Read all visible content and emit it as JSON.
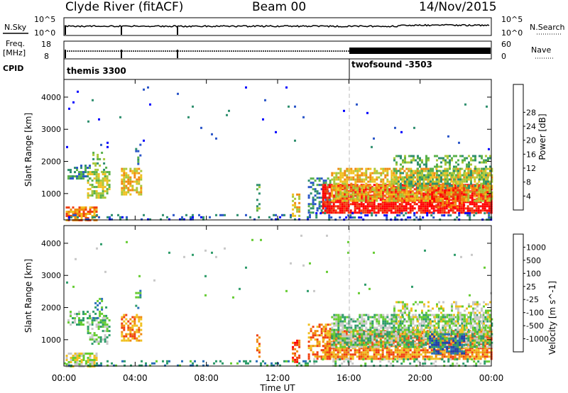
{
  "header": {
    "title": "Clyde River (fitACF)",
    "beam": "Beam 00",
    "date": "14/Nov/2015"
  },
  "params": {
    "nsky_label": "N.Sky",
    "nsearch_label": "N.Search",
    "freq_label_line1": "Freq.",
    "freq_label_line2": "[MHz]",
    "nave_label": "Nave",
    "cpid_label": "CPID",
    "noise_left_ticks": [
      "10^5",
      "10^0"
    ],
    "noise_right_ticks": [
      "10^5",
      "10^0"
    ],
    "freq_ticks": [
      "18",
      "8"
    ],
    "nave_ticks": [
      "60",
      "0"
    ],
    "cpid_segments": [
      {
        "start_hour": 0,
        "label": "themis 3300"
      },
      {
        "start_hour": 15.95,
        "label": "twofsound -3503"
      }
    ]
  },
  "axes": {
    "xlabel": "Time UT",
    "x_ticks": [
      "00:00",
      "04:00",
      "08:00",
      "12:00",
      "16:00",
      "20:00",
      "00:00"
    ],
    "x_tick_hours": [
      0,
      4,
      8,
      12,
      16,
      20,
      24
    ],
    "ylabel": "Slant Range [km]",
    "y_ticks": [
      "1000",
      "2000",
      "3000",
      "4000"
    ],
    "y_tick_values": [
      1000,
      2000,
      3000,
      4000
    ],
    "ylim": [
      180,
      4550
    ],
    "xlim": [
      0,
      24
    ]
  },
  "power_scale": {
    "label": "Power [dB]",
    "ticks": [
      "4",
      "8",
      "12",
      "16",
      "20",
      "24",
      "28"
    ],
    "colors": [
      "#0000ff",
      "#2a55c8",
      "#2e8f6e",
      "#59b14a",
      "#a8c83a",
      "#f0c020",
      "#f08a10",
      "#f04010",
      "#ff0000"
    ]
  },
  "velocity_scale": {
    "label": "Velocity [m s^-1]",
    "ticks": [
      "1000",
      "500",
      "100",
      "25",
      "-25",
      "-100",
      "-500",
      "-1000"
    ],
    "colors": [
      "#1f3fb0",
      "#2a6fb8",
      "#2e9c6a",
      "#66cc33",
      "#c8c8c8",
      "#f0c020",
      "#f08a10",
      "#f04010",
      "#ff0000"
    ]
  },
  "chart_data": {
    "type": "heatmap",
    "panels": [
      "power",
      "velocity"
    ],
    "x_units": "hours UT",
    "y_units": "km",
    "blobs": [
      {
        "t0": 0.1,
        "t1": 1.8,
        "r0": 200,
        "r1": 600,
        "p": 6,
        "v": 4,
        "d": 0.7
      },
      {
        "t0": 0.2,
        "t1": 1.5,
        "r0": 1500,
        "r1": 1900,
        "p": 2,
        "v": 3,
        "d": 0.5
      },
      {
        "t0": 1.3,
        "t1": 2.6,
        "r0": 900,
        "r1": 1700,
        "p": 4,
        "v": 3,
        "d": 0.6
      },
      {
        "t0": 1.6,
        "t1": 2.4,
        "r0": 1700,
        "r1": 2300,
        "p": 3,
        "v": 2,
        "d": 0.3
      },
      {
        "t0": 3.2,
        "t1": 4.3,
        "r0": 1000,
        "r1": 1800,
        "p": 5,
        "v": 6,
        "d": 0.6
      },
      {
        "t0": 4.0,
        "t1": 4.3,
        "r0": 1900,
        "r1": 2550,
        "p": 2,
        "v": 2,
        "d": 0.35
      },
      {
        "t0": 0,
        "t1": 13.8,
        "r0": 220,
        "r1": 360,
        "p": 1,
        "v": 2,
        "d": 0.22
      },
      {
        "t0": 10.8,
        "t1": 11.0,
        "r0": 450,
        "r1": 1300,
        "p": 3,
        "v": 6,
        "d": 0.45
      },
      {
        "t0": 12.8,
        "t1": 13.2,
        "r0": 300,
        "r1": 1000,
        "p": 5,
        "v": 7,
        "d": 0.5
      },
      {
        "t0": 13.7,
        "t1": 15.0,
        "r0": 400,
        "r1": 1500,
        "p": 2,
        "v": 6,
        "d": 0.55
      },
      {
        "t0": 14.5,
        "t1": 24,
        "r0": 400,
        "r1": 1300,
        "p": 8,
        "v": 6,
        "d": 0.85
      },
      {
        "t0": 15.0,
        "t1": 24,
        "r0": 800,
        "r1": 1800,
        "p": 5,
        "v": 3,
        "d": 0.7
      },
      {
        "t0": 18.5,
        "t1": 24,
        "r0": 1200,
        "r1": 2200,
        "p": 3,
        "v": 4,
        "d": 0.4
      },
      {
        "t0": 20.5,
        "t1": 22.5,
        "r0": 600,
        "r1": 1200,
        "p": 7,
        "v": 1,
        "d": 0.55
      },
      {
        "t0": 14,
        "t1": 24,
        "r0": 180,
        "r1": 420,
        "p": 1,
        "v": 3,
        "d": 0.25
      },
      {
        "t0": 0,
        "t1": 24,
        "r0": 2300,
        "r1": 4400,
        "p": 1,
        "v": 3,
        "d": 0.008
      }
    ]
  }
}
